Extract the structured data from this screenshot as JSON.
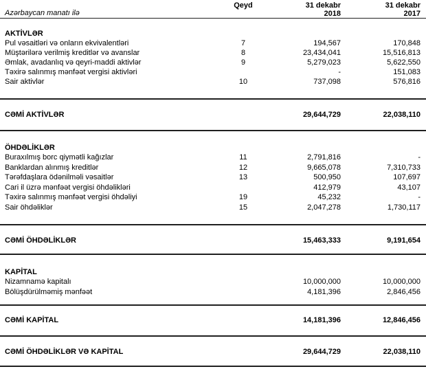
{
  "colors": {
    "background": "#ffffff",
    "text": "#000000",
    "rule": "#1f1f1f"
  },
  "header": {
    "currency_note": "Azərbaycan manatı ilə",
    "qeyd": "Qeyd",
    "col2018": {
      "line1": "31 dekabr",
      "line2": "2018"
    },
    "col2017": {
      "line1": "31 dekabr",
      "line2": "2017"
    }
  },
  "sections": [
    {
      "heading": "AKTİVLƏR",
      "rows": [
        {
          "label": "Pul vəsaitləri və onların ekvivalentləri",
          "qeyd": "7",
          "y2018": "194,567",
          "y2017": "170,848"
        },
        {
          "label": "Müştərilərə verilmiş kreditlər və avanslar",
          "qeyd": "8",
          "y2018": "23,434,041",
          "y2017": "15,516,813"
        },
        {
          "label": "Əmlak, avadanlıq və qeyri-maddi aktivlər",
          "qeyd": "9",
          "y2018": "5,279,023",
          "y2017": "5,622,550"
        },
        {
          "label": "Təxirə salınmış mənfəət vergisi aktivləri",
          "qeyd": "",
          "y2018": "-",
          "y2017": "151,083"
        },
        {
          "label": "Sair aktivlər",
          "qeyd": "10",
          "y2018": "737,098",
          "y2017": "576,816"
        }
      ],
      "total": {
        "label": "CƏMİ AKTİVLƏR",
        "y2018": "29,644,729",
        "y2017": "22,038,110"
      }
    },
    {
      "heading": "ÖHDƏLİKLƏR",
      "rows": [
        {
          "label": "Buraxılmış borc qiymətli kağızlar",
          "qeyd": "11",
          "y2018": "2,791,816",
          "y2017": "-"
        },
        {
          "label": "Banklardan alınmış kreditlər",
          "qeyd": "12",
          "y2018": "9,665,078",
          "y2017": "7,310,733"
        },
        {
          "label": "Tərəfdaşlara ödənilməli vəsaitlər",
          "qeyd": "13",
          "y2018": "500,950",
          "y2017": "107,697"
        },
        {
          "label": "Cari il üzrə mənfəət vergisi öhdəlikləri",
          "qeyd": "",
          "y2018": "412,979",
          "y2017": "43,107"
        },
        {
          "label": "Təxirə salınmış mənfəət vergisi öhdəliyi",
          "qeyd": "19",
          "y2018": "45,232",
          "y2017": "-"
        },
        {
          "label": "Sair öhdəliklər",
          "qeyd": "15",
          "y2018": "2,047,278",
          "y2017": "1,730,117"
        }
      ],
      "total": {
        "label": "CƏMİ ÖHDƏLİKLƏR",
        "y2018": "15,463,333",
        "y2017": "9,191,654"
      }
    },
    {
      "heading": "KAPİTAL",
      "rows": [
        {
          "label": "Nizamnamə kapitalı",
          "qeyd": "",
          "y2018": "10,000,000",
          "y2017": "10,000,000"
        },
        {
          "label": "Bölüşdürülməmiş mənfəət",
          "qeyd": "",
          "y2018": "4,181,396",
          "y2017": "2,846,456"
        }
      ],
      "total": {
        "label": "CƏMİ KAPİTAL",
        "y2018": "14,181,396",
        "y2017": "12,846,456"
      }
    }
  ],
  "grand_total": {
    "label": "CƏMİ ÖHDƏLİKLƏR VƏ KAPİTAL",
    "y2018": "29,644,729",
    "y2017": "22,038,110"
  }
}
